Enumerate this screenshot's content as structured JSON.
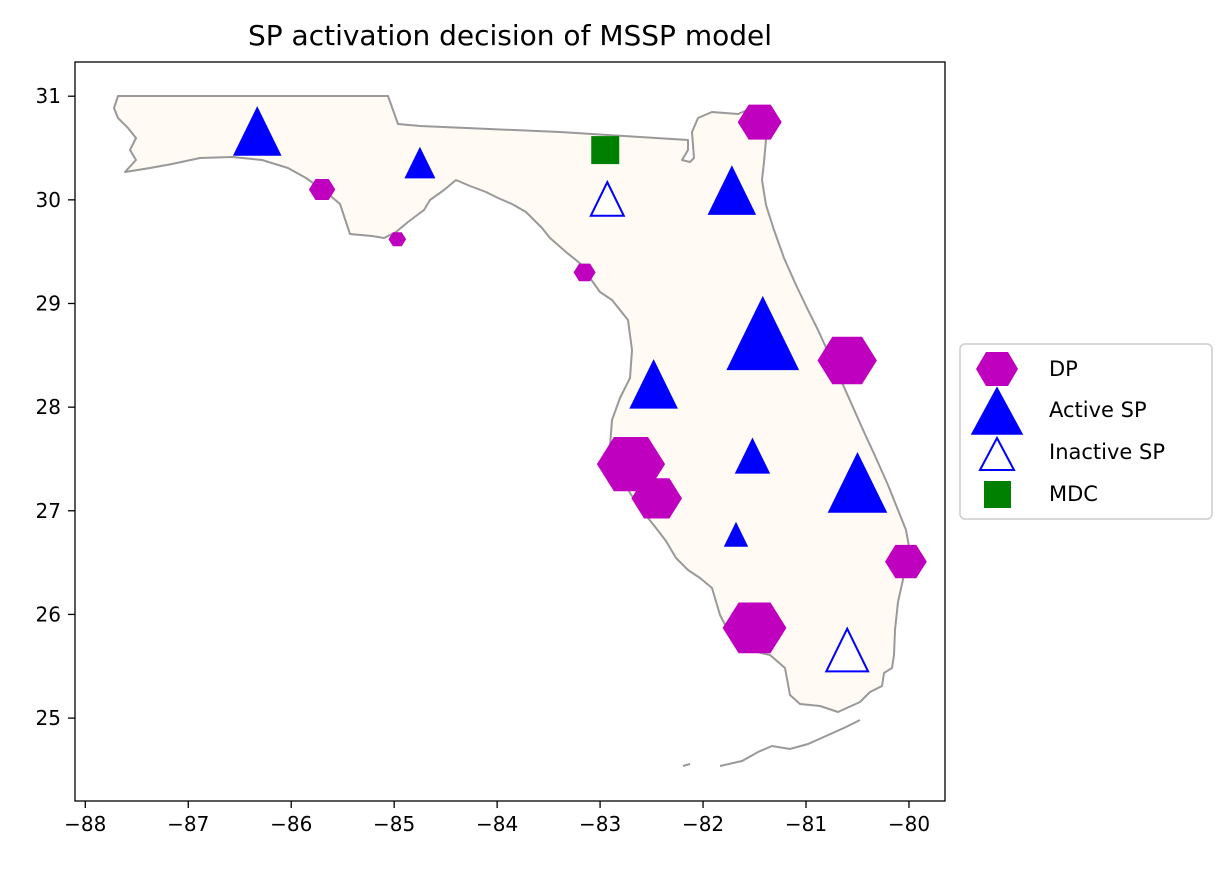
{
  "chart_data": {
    "type": "scatter",
    "title": "SP activation decision of MSSP model",
    "xlim": [
      -88.1,
      -79.65
    ],
    "ylim": [
      24.2,
      31.33
    ],
    "x_ticks": [
      -88,
      -87,
      -86,
      -85,
      -84,
      -83,
      -82,
      -81,
      -80
    ],
    "y_ticks": [
      25,
      26,
      27,
      28,
      29,
      30,
      31
    ],
    "x_tick_labels": [
      "−88",
      "−87",
      "−86",
      "−85",
      "−84",
      "−83",
      "−82",
      "−81",
      "−80"
    ],
    "y_tick_labels": [
      "25",
      "26",
      "27",
      "28",
      "29",
      "30",
      "31"
    ],
    "legend_position": "outside-right",
    "background_region": "Florida",
    "colors": {
      "land_fill": "#fffbf4",
      "border": "#999999",
      "dp": "#bf00bf",
      "active_sp": "#0000ff",
      "inactive_sp": "#0000ff",
      "mdc": "#008000"
    },
    "series": [
      {
        "name": "DP",
        "marker": "hexagon",
        "points": [
          {
            "x": -81.45,
            "y": 30.75,
            "size": 2
          },
          {
            "x": -85.7,
            "y": 30.1,
            "size": 1.2
          },
          {
            "x": -84.97,
            "y": 29.62,
            "size": 0.8
          },
          {
            "x": -83.15,
            "y": 29.3,
            "size": 1
          },
          {
            "x": -80.6,
            "y": 28.45,
            "size": 2.7
          },
          {
            "x": -82.7,
            "y": 27.45,
            "size": 3.1
          },
          {
            "x": -82.45,
            "y": 27.12,
            "size": 2.3
          },
          {
            "x": -80.03,
            "y": 26.51,
            "size": 1.9
          },
          {
            "x": -81.5,
            "y": 25.87,
            "size": 2.9
          }
        ]
      },
      {
        "name": "Active SP",
        "marker": "triangle",
        "points": [
          {
            "x": -86.33,
            "y": 30.62,
            "size": 2.1
          },
          {
            "x": -84.75,
            "y": 30.33,
            "size": 1.3
          },
          {
            "x": -81.72,
            "y": 30.05,
            "size": 2.1
          },
          {
            "x": -81.42,
            "y": 28.65,
            "size": 3.2
          },
          {
            "x": -82.48,
            "y": 28.18,
            "size": 2.1
          },
          {
            "x": -81.52,
            "y": 27.5,
            "size": 1.5
          },
          {
            "x": -80.5,
            "y": 27.22,
            "size": 2.6
          },
          {
            "x": -81.68,
            "y": 26.75,
            "size": 1
          }
        ]
      },
      {
        "name": "Inactive SP",
        "marker": "triangle-open",
        "points": [
          {
            "x": -82.93,
            "y": 29.98,
            "size": 1.5
          },
          {
            "x": -80.6,
            "y": 25.62,
            "size": 1.9
          }
        ]
      },
      {
        "name": "MDC",
        "marker": "square",
        "points": [
          {
            "x": -82.95,
            "y": 30.48,
            "size": 1
          }
        ]
      }
    ]
  }
}
